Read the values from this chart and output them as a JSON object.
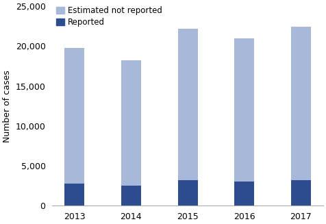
{
  "years": [
    "2013",
    "2014",
    "2015",
    "2016",
    "2017"
  ],
  "reported": [
    2800,
    2500,
    3200,
    3000,
    3200
  ],
  "total": [
    19800,
    18200,
    22200,
    21000,
    22400
  ],
  "color_reported": "#2E4D8E",
  "color_estimated": "#A8B8D8",
  "ylabel": "Number of cases",
  "ylim": [
    0,
    25000
  ],
  "yticks": [
    0,
    5000,
    10000,
    15000,
    20000,
    25000
  ],
  "legend_estimated": "Estimated not reported",
  "legend_reported": "Reported",
  "bar_width": 0.35,
  "figsize": [
    4.76,
    3.27
  ],
  "dpi": 100
}
